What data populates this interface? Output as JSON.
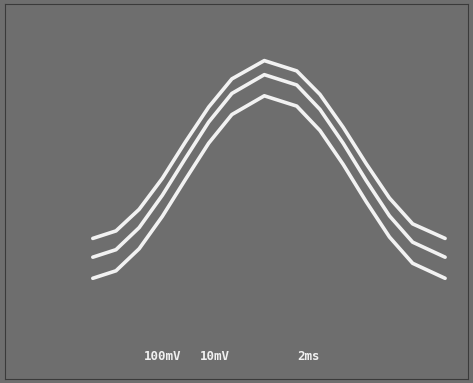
{
  "chart_data": {
    "type": "line",
    "x": [
      1.9,
      2.4,
      2.9,
      3.4,
      3.9,
      4.4,
      4.9,
      5.6,
      6.3,
      6.8,
      7.3,
      7.8,
      8.3,
      8.8,
      9.5
    ],
    "series": [
      {
        "color": "#f2f2f2",
        "values": [
          -1.0,
          -0.84,
          -0.38,
          0.28,
          1.06,
          1.8,
          2.4,
          2.79,
          2.57,
          2.07,
          1.37,
          0.59,
          -0.14,
          -0.69,
          -1.0
        ]
      },
      {
        "color": "#f2f2f2",
        "values": [
          -1.4,
          -1.24,
          -0.77,
          -0.08,
          0.71,
          1.48,
          2.09,
          2.49,
          2.27,
          1.75,
          1.03,
          0.23,
          -0.52,
          -1.08,
          -1.4
        ]
      },
      {
        "color": "#f2f2f2",
        "values": [
          -1.85,
          -1.69,
          -1.22,
          -0.53,
          0.26,
          1.03,
          1.64,
          2.04,
          1.82,
          1.3,
          0.58,
          -0.22,
          -0.97,
          -1.53,
          -1.85
        ]
      }
    ],
    "annotations": [
      "100mV",
      "10mV",
      "2ms"
    ],
    "xlim": [
      0,
      10
    ],
    "ylim": [
      -4,
      4
    ],
    "xticks": [],
    "yticks": [],
    "tick_labels": false,
    "grid": false
  }
}
